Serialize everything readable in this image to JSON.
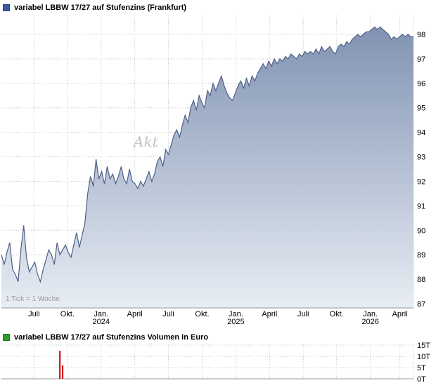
{
  "price_chart": {
    "title": "variabel LBBW 17/27 auf Stufenzins (Frankfurt)",
    "legend_color": "#3b5ba5",
    "tick_note": "1 Tick = 1 Woche",
    "watermark": "Akt"
  },
  "volume_chart": {
    "title": "variabel LBBW 17/27 auf Stufenzins Volumen in Euro",
    "legend_color": "#2da02d"
  },
  "colors": {
    "grid": "#c8c8c8",
    "axis_line": "#999999",
    "axis_text": "#000000",
    "price_line": "#4e6088",
    "fill_top": "#8193b3",
    "fill_bottom": "#e8edf4",
    "volume_bar": "#cc0000",
    "note_text": "#999999"
  },
  "chart_data": [
    {
      "type": "area",
      "title": "variabel LBBW 17/27 auf Stufenzins (Frankfurt)",
      "x_unit": "1 Tick = 1 Woche (weekly points)",
      "ylim": [
        86.83,
        98.8
      ],
      "y_ticks": [
        87,
        88,
        89,
        90,
        91,
        92,
        93,
        94,
        95,
        96,
        97,
        98
      ],
      "x_ticks": [
        {
          "label": "Juli",
          "index": 11.7
        },
        {
          "label": "Okt.",
          "index": 23.7
        },
        {
          "label": "Jan.",
          "year": "2024",
          "index": 35.8
        },
        {
          "label": "April",
          "index": 47.9
        },
        {
          "label": "Juli",
          "index": 60.0
        },
        {
          "label": "Okt.",
          "index": 72.1
        },
        {
          "label": "Jan.",
          "year": "2025",
          "index": 84.2
        },
        {
          "label": "April",
          "index": 96.3
        },
        {
          "label": "Juli",
          "index": 108.4
        },
        {
          "label": "Okt.",
          "index": 120.4
        },
        {
          "label": "Jan.",
          "year": "2026",
          "index": 132.5
        },
        {
          "label": "April",
          "index": 143.1
        }
      ],
      "legend_position": "none",
      "grid": true,
      "values": [
        89.0,
        88.6,
        89.1,
        89.5,
        88.4,
        88.2,
        87.9,
        89.2,
        90.2,
        88.9,
        88.3,
        88.5,
        88.7,
        88.2,
        87.9,
        88.4,
        88.8,
        89.2,
        89.0,
        88.6,
        89.5,
        89.0,
        89.2,
        89.4,
        89.1,
        88.9,
        89.4,
        89.9,
        89.3,
        89.8,
        90.3,
        91.5,
        92.2,
        91.8,
        92.9,
        92.1,
        92.4,
        91.9,
        92.6,
        92.1,
        92.3,
        91.9,
        92.2,
        92.6,
        92.1,
        91.9,
        92.5,
        92.0,
        91.9,
        91.7,
        92.0,
        91.8,
        92.1,
        92.4,
        92.0,
        92.3,
        92.8,
        93.0,
        92.6,
        93.3,
        93.1,
        93.5,
        93.9,
        94.1,
        93.8,
        94.3,
        94.7,
        94.4,
        95.0,
        95.3,
        94.9,
        95.5,
        95.2,
        95.0,
        95.7,
        95.5,
        96.0,
        95.7,
        96.0,
        96.3,
        95.9,
        95.6,
        95.4,
        95.3,
        95.6,
        95.9,
        96.1,
        95.8,
        96.2,
        95.9,
        96.3,
        96.1,
        96.4,
        96.6,
        96.8,
        96.6,
        96.9,
        96.7,
        97.0,
        96.8,
        97.0,
        96.9,
        97.1,
        97.0,
        97.2,
        97.1,
        97.0,
        97.2,
        97.1,
        97.3,
        97.2,
        97.3,
        97.2,
        97.4,
        97.2,
        97.5,
        97.3,
        97.4,
        97.5,
        97.3,
        97.2,
        97.5,
        97.6,
        97.5,
        97.7,
        97.6,
        97.8,
        97.9,
        98.0,
        97.9,
        98.0,
        98.1,
        98.1,
        98.2,
        98.3,
        98.2,
        98.3,
        98.2,
        98.1,
        98.0,
        97.8,
        97.9,
        97.8,
        97.9,
        98.0,
        97.9,
        98.0,
        97.9,
        97.9
      ]
    },
    {
      "type": "bar",
      "title": "variabel LBBW 17/27 auf Stufenzins Volumen in Euro",
      "unit": "T (Tausend Euro)",
      "ylim_thousands": [
        0,
        15
      ],
      "y_ticks": [
        {
          "value": 15,
          "label": "15T"
        },
        {
          "value": 10,
          "label": "10T"
        },
        {
          "value": 5,
          "label": "5T"
        },
        {
          "value": 0,
          "label": "0T"
        }
      ],
      "n_points": 149,
      "all_other_values_thousands": 0,
      "bars": [
        {
          "index": 21,
          "value_thousands": 12.5
        },
        {
          "index": 22,
          "value_thousands": 6.0
        }
      ]
    }
  ]
}
